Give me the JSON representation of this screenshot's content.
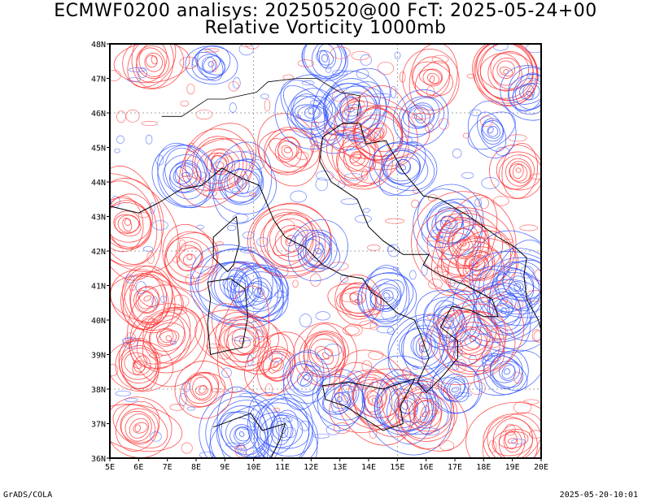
{
  "title_line1": "ECMWF0200 analisys: 20250520@00 FcT: 2025-05-24+00",
  "title_line2": "Relative Vorticity 1000mb",
  "credit": "GrADS/COLA",
  "timestamp": "2025-05-20-10:01",
  "map": {
    "lon_range": [
      5,
      20
    ],
    "lat_range": [
      36,
      48
    ],
    "x_tick_labels": [
      "5E",
      "6E",
      "7E",
      "8E",
      "9E",
      "10E",
      "11E",
      "12E",
      "13E",
      "14E",
      "15E",
      "16E",
      "17E",
      "18E",
      "19E",
      "20E"
    ],
    "y_tick_labels": [
      "36N",
      "37N",
      "38N",
      "39N",
      "40N",
      "41N",
      "42N",
      "43N",
      "44N",
      "45N",
      "46N",
      "47N",
      "48N"
    ],
    "positive_color": "#ff3333",
    "negative_color": "#3355ff",
    "coastline_color": "#000000",
    "gridlines": "dotted"
  }
}
